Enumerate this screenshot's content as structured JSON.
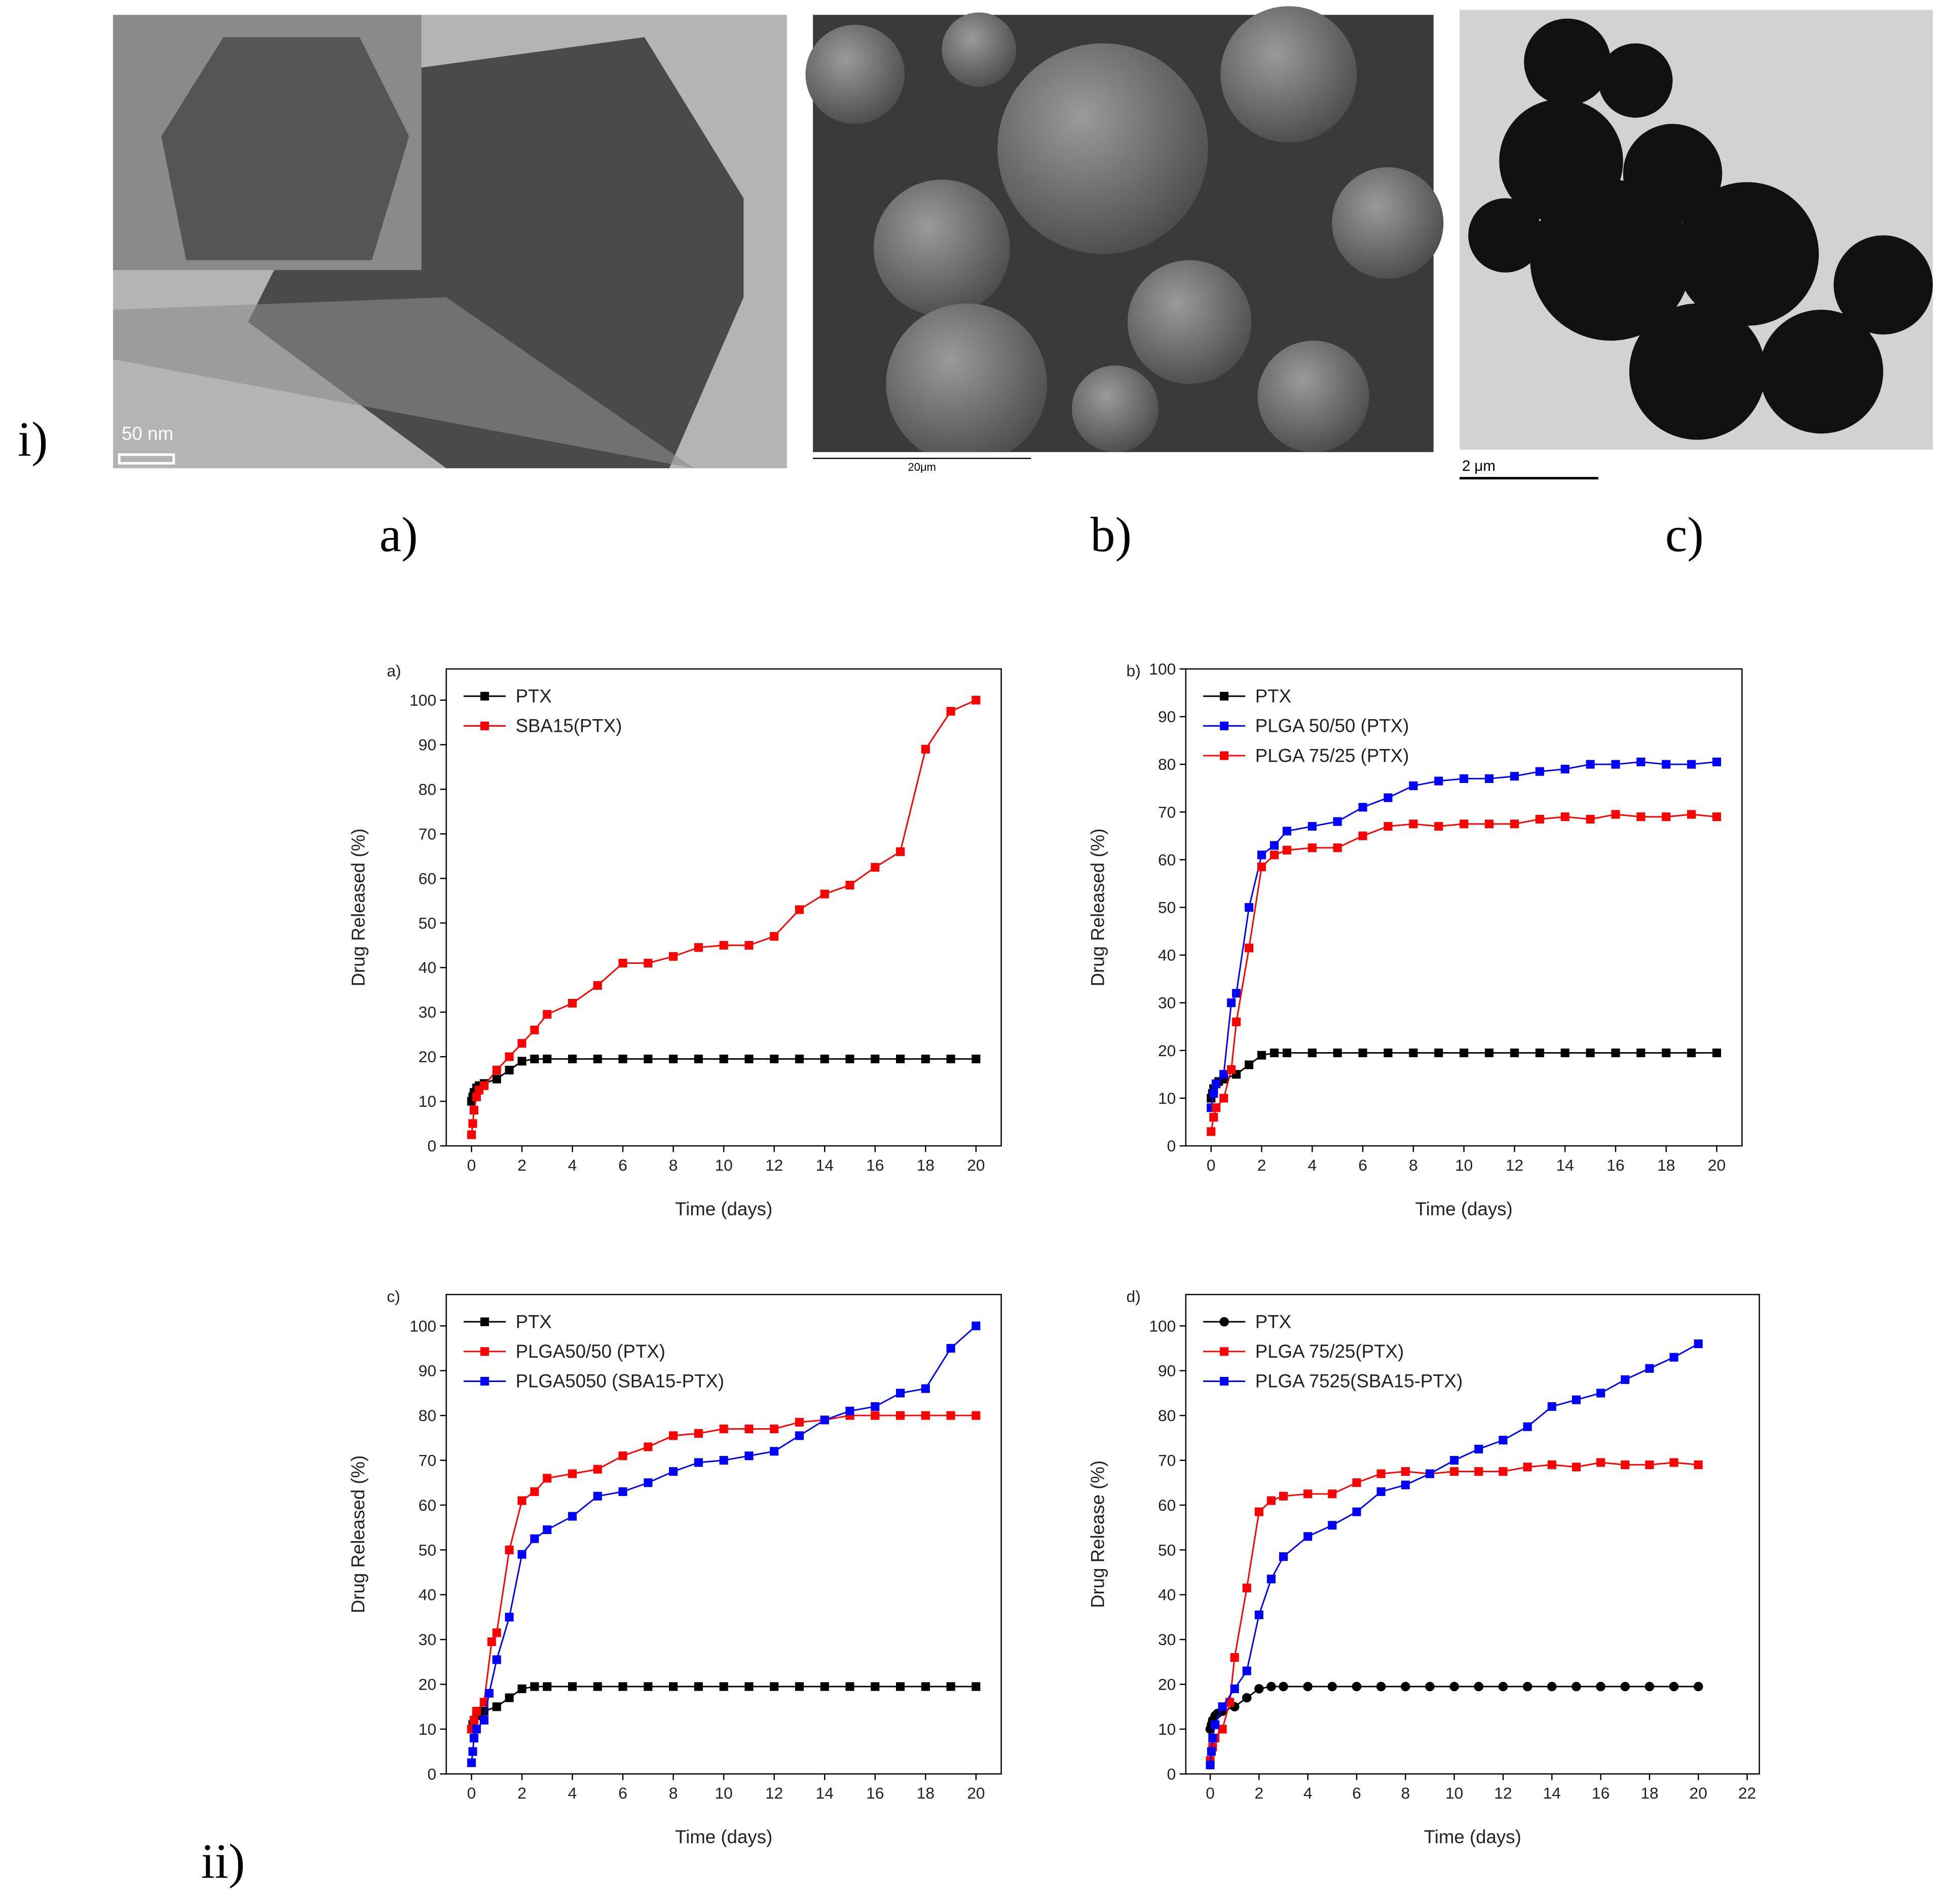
{
  "figure_labels": {
    "part_i": "i)",
    "part_ii": "ii)"
  },
  "micrographs": [
    {
      "label": "a)",
      "scale_bar": "50 nm"
    },
    {
      "label": "b)",
      "scale_bar": "20μm"
    },
    {
      "label": "c)",
      "scale_bar": "2 μm"
    }
  ],
  "chart_data": [
    {
      "type": "line",
      "title": "a)",
      "x_label": "Time (days)",
      "y_label": "Drug Released (%)",
      "xlim": [
        -1,
        21
      ],
      "xticks": [
        0,
        2,
        4,
        6,
        8,
        10,
        12,
        14,
        16,
        18,
        20
      ],
      "ylim": [
        0,
        107
      ],
      "yticks": [
        0,
        10,
        20,
        30,
        40,
        50,
        60,
        70,
        80,
        90,
        100
      ],
      "legend": "upper left",
      "series": [
        {
          "name": "PTX",
          "color": "#000000",
          "marker": "square",
          "x": [
            0,
            0.05,
            0.1,
            0.2,
            0.3,
            0.5,
            1,
            1.5,
            2,
            2.5,
            3,
            4,
            5,
            6,
            7,
            8,
            9,
            10,
            11,
            12,
            13,
            14,
            15,
            16,
            17,
            18,
            19,
            20
          ],
          "values": [
            10,
            11,
            12,
            13,
            13.5,
            14,
            15,
            17,
            19,
            19.5,
            19.5,
            19.5,
            19.5,
            19.5,
            19.5,
            19.5,
            19.5,
            19.5,
            19.5,
            19.5,
            19.5,
            19.5,
            19.5,
            19.5,
            19.5,
            19.5,
            19.5,
            19.5
          ]
        },
        {
          "name": "SBA15(PTX)",
          "color": "#ff0000",
          "marker": "square",
          "x": [
            0,
            0.05,
            0.1,
            0.2,
            0.3,
            0.5,
            1,
            1.5,
            2,
            2.5,
            3,
            4,
            5,
            6,
            7,
            8,
            9,
            10,
            11,
            12,
            13,
            14,
            15,
            16,
            17,
            18,
            19,
            20
          ],
          "values": [
            2.5,
            5,
            8,
            11,
            12.5,
            13.5,
            17,
            20,
            23,
            26,
            29.5,
            32,
            36,
            41,
            41,
            42.5,
            44.5,
            45,
            45,
            47,
            53,
            56.5,
            58.5,
            62.5,
            66,
            89,
            97.5,
            100
          ]
        }
      ]
    },
    {
      "type": "line",
      "title": "b)",
      "x_label": "Time (days)",
      "y_label": "Drug Released (%)",
      "xlim": [
        -1,
        21
      ],
      "xticks": [
        0,
        2,
        4,
        6,
        8,
        10,
        12,
        14,
        16,
        18,
        20
      ],
      "ylim": [
        0,
        100
      ],
      "yticks": [
        0,
        10,
        20,
        30,
        40,
        50,
        60,
        70,
        80,
        90,
        100
      ],
      "legend": "upper left",
      "series": [
        {
          "name": "PTX",
          "color": "#000000",
          "marker": "square",
          "x": [
            0,
            0.05,
            0.1,
            0.2,
            0.3,
            0.5,
            1,
            1.5,
            2,
            2.5,
            3,
            4,
            5,
            6,
            7,
            8,
            9,
            10,
            11,
            12,
            13,
            14,
            15,
            16,
            17,
            18,
            19,
            20
          ],
          "values": [
            10,
            11,
            12,
            13,
            13.5,
            14,
            15,
            17,
            19,
            19.5,
            19.5,
            19.5,
            19.5,
            19.5,
            19.5,
            19.5,
            19.5,
            19.5,
            19.5,
            19.5,
            19.5,
            19.5,
            19.5,
            19.5,
            19.5,
            19.5,
            19.5,
            19.5
          ]
        },
        {
          "name": "PLGA 50/50 (PTX)",
          "color": "#0000ff",
          "marker": "square",
          "x": [
            0,
            0.1,
            0.2,
            0.5,
            0.8,
            1,
            1.5,
            2,
            2.5,
            3,
            4,
            5,
            6,
            7,
            8,
            9,
            10,
            11,
            12,
            13,
            14,
            15,
            16,
            17,
            18,
            19,
            20
          ],
          "values": [
            8,
            11,
            13,
            15,
            30,
            32,
            50,
            61,
            63,
            66,
            67,
            68,
            71,
            73,
            75.5,
            76.5,
            77,
            77,
            77.5,
            78.5,
            79,
            80,
            80,
            80.5,
            80,
            80,
            80.5
          ]
        },
        {
          "name": "PLGA 75/25 (PTX)",
          "color": "#ff0000",
          "marker": "square",
          "x": [
            0,
            0.1,
            0.2,
            0.5,
            0.8,
            1,
            1.5,
            2,
            2.5,
            3,
            4,
            5,
            6,
            7,
            8,
            9,
            10,
            11,
            12,
            13,
            14,
            15,
            16,
            17,
            18,
            19,
            20
          ],
          "values": [
            3,
            6,
            8,
            10,
            16,
            26,
            41.5,
            58.5,
            61,
            62,
            62.5,
            62.5,
            65,
            67,
            67.5,
            67,
            67.5,
            67.5,
            67.5,
            68.5,
            69,
            68.5,
            69.5,
            69,
            69,
            69.5,
            69
          ]
        }
      ]
    },
    {
      "type": "line",
      "title": "c)",
      "x_label": "Time (days)",
      "y_label": "Drug Released (%)",
      "xlim": [
        -1,
        21
      ],
      "xticks": [
        0,
        2,
        4,
        6,
        8,
        10,
        12,
        14,
        16,
        18,
        20
      ],
      "ylim": [
        0,
        107
      ],
      "yticks": [
        0,
        10,
        20,
        30,
        40,
        50,
        60,
        70,
        80,
        90,
        100
      ],
      "legend": "upper left",
      "series": [
        {
          "name": "PTX",
          "color": "#000000",
          "marker": "square",
          "x": [
            0,
            0.05,
            0.1,
            0.2,
            0.3,
            0.5,
            1,
            1.5,
            2,
            2.5,
            3,
            4,
            5,
            6,
            7,
            8,
            9,
            10,
            11,
            12,
            13,
            14,
            15,
            16,
            17,
            18,
            19,
            20
          ],
          "values": [
            10,
            11,
            12,
            13,
            13.5,
            14,
            15,
            17,
            19,
            19.5,
            19.5,
            19.5,
            19.5,
            19.5,
            19.5,
            19.5,
            19.5,
            19.5,
            19.5,
            19.5,
            19.5,
            19.5,
            19.5,
            19.5,
            19.5,
            19.5,
            19.5,
            19.5
          ]
        },
        {
          "name": "PLGA50/50 (PTX)",
          "color": "#ff0000",
          "marker": "square",
          "x": [
            0,
            0.1,
            0.2,
            0.5,
            0.8,
            1,
            1.5,
            2,
            2.5,
            3,
            4,
            5,
            6,
            7,
            8,
            9,
            10,
            11,
            12,
            13,
            14,
            15,
            16,
            17,
            18,
            19,
            20
          ],
          "values": [
            10,
            12,
            14,
            16,
            29.5,
            31.5,
            50,
            61,
            63,
            66,
            67,
            68,
            71,
            73,
            75.5,
            76,
            77,
            77,
            77,
            78.5,
            79,
            80,
            80,
            80,
            80,
            80,
            80
          ]
        },
        {
          "name": "PLGA5050 (SBA15-PTX)",
          "color": "#0000ff",
          "marker": "square",
          "x": [
            0,
            0.05,
            0.1,
            0.2,
            0.5,
            0.7,
            1,
            1.5,
            2,
            2.5,
            3,
            4,
            5,
            6,
            7,
            8,
            9,
            10,
            11,
            12,
            13,
            14,
            15,
            16,
            17,
            18,
            19,
            20
          ],
          "values": [
            2.5,
            5,
            8,
            10,
            12,
            18,
            25.5,
            35,
            49,
            52.5,
            54.5,
            57.5,
            62,
            63,
            65,
            67.5,
            69.5,
            70,
            71,
            72,
            75.5,
            79,
            81,
            82,
            85,
            86,
            95,
            100
          ]
        }
      ]
    },
    {
      "type": "line",
      "title": "d)",
      "x_label": "Time (days)",
      "y_label": "Drug Release (%)",
      "xlim": [
        -1,
        22.5
      ],
      "xticks": [
        0,
        2,
        4,
        6,
        8,
        10,
        12,
        14,
        16,
        18,
        20,
        22
      ],
      "ylim": [
        0,
        107
      ],
      "yticks": [
        0,
        10,
        20,
        30,
        40,
        50,
        60,
        70,
        80,
        90,
        100
      ],
      "legend": "upper left",
      "series": [
        {
          "name": "PTX",
          "color": "#000000",
          "marker": "circle",
          "x": [
            0,
            0.05,
            0.1,
            0.2,
            0.3,
            0.5,
            1,
            1.5,
            2,
            2.5,
            3,
            4,
            5,
            6,
            7,
            8,
            9,
            10,
            11,
            12,
            13,
            14,
            15,
            16,
            17,
            18,
            19,
            20
          ],
          "values": [
            10,
            11,
            12,
            13,
            13.5,
            14,
            15,
            17,
            19,
            19.5,
            19.5,
            19.5,
            19.5,
            19.5,
            19.5,
            19.5,
            19.5,
            19.5,
            19.5,
            19.5,
            19.5,
            19.5,
            19.5,
            19.5,
            19.5,
            19.5,
            19.5,
            19.5
          ]
        },
        {
          "name": "PLGA 75/25(PTX)",
          "color": "#ff0000",
          "marker": "square",
          "x": [
            0,
            0.1,
            0.2,
            0.5,
            0.8,
            1,
            1.5,
            2,
            2.5,
            3,
            4,
            5,
            6,
            7,
            8,
            9,
            10,
            11,
            12,
            13,
            14,
            15,
            16,
            17,
            18,
            19,
            20
          ],
          "values": [
            3,
            6,
            8,
            10,
            16,
            26,
            41.5,
            58.5,
            61,
            62,
            62.5,
            62.5,
            65,
            67,
            67.5,
            67,
            67.5,
            67.5,
            67.5,
            68.5,
            69,
            68.5,
            69.5,
            69,
            69,
            69.5,
            69
          ]
        },
        {
          "name": "PLGA 7525(SBA15-PTX)",
          "color": "#0000ff",
          "marker": "square",
          "x": [
            0,
            0.05,
            0.1,
            0.2,
            0.5,
            1,
            1.5,
            2,
            2.5,
            3,
            4,
            5,
            6,
            7,
            8,
            9,
            10,
            11,
            12,
            13,
            14,
            15,
            16,
            17,
            18,
            19,
            20
          ],
          "values": [
            2,
            5,
            8,
            11,
            15,
            19,
            23,
            35.5,
            43.5,
            48.5,
            53,
            55.5,
            58.5,
            63,
            64.5,
            67,
            70,
            72.5,
            74.5,
            77.5,
            82,
            83.5,
            85,
            88,
            90.5,
            93,
            96
          ]
        }
      ]
    }
  ]
}
